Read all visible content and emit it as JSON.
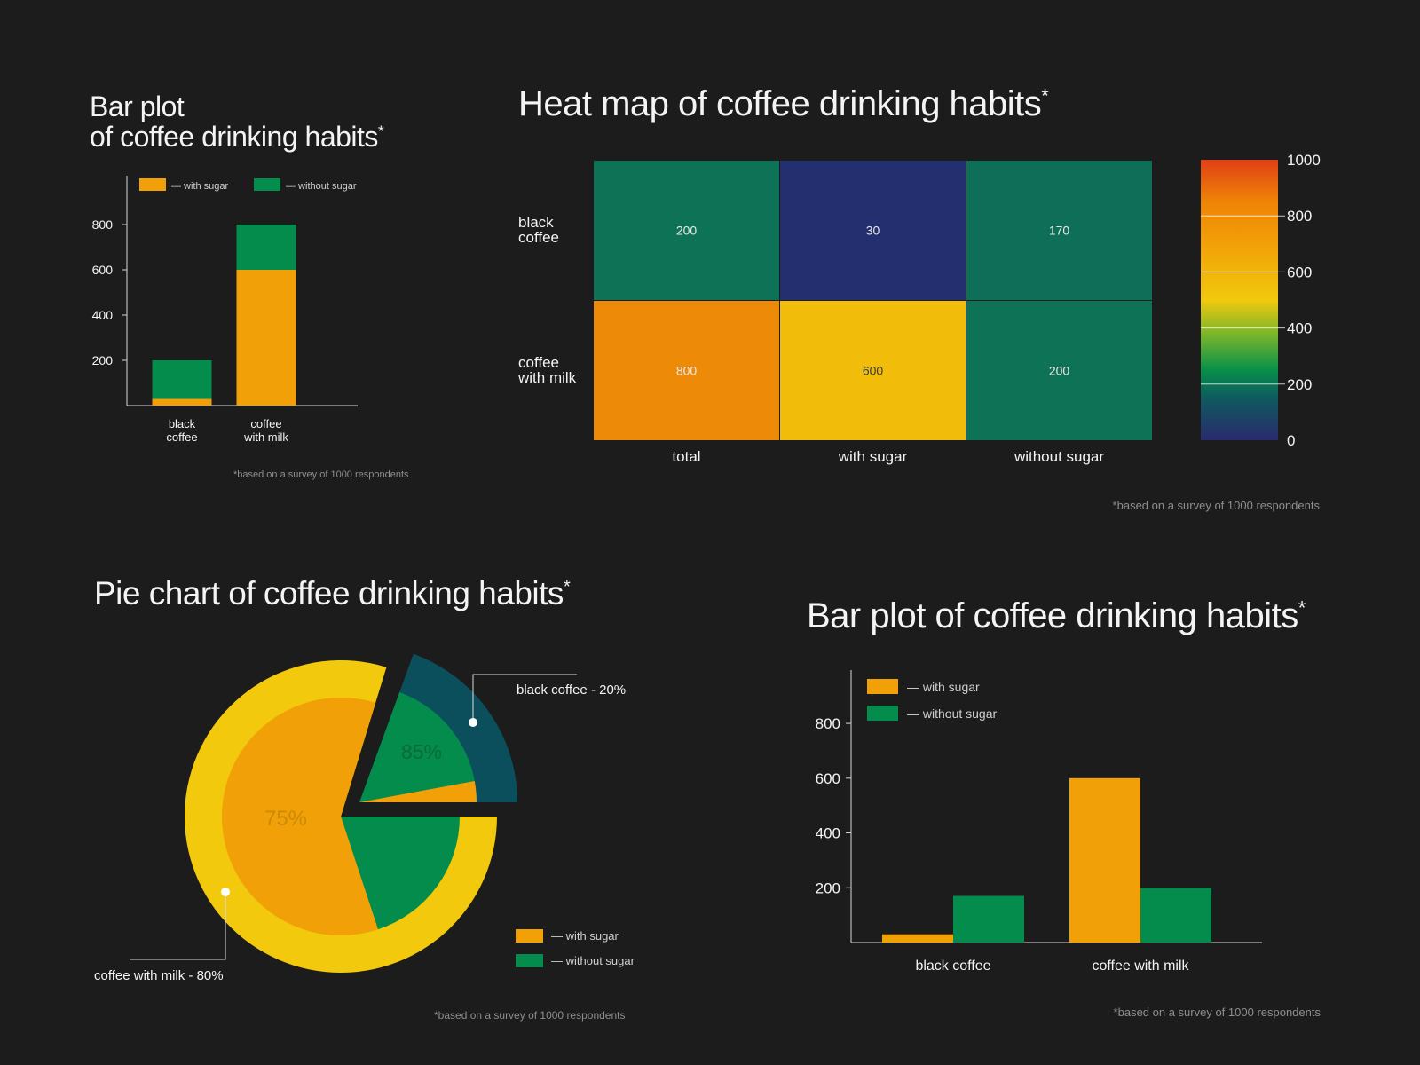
{
  "colors": {
    "background": "#1c1c1c",
    "with_sugar": "#f2a007",
    "without_sugar": "#048c4c",
    "axis": "#d8d8d8",
    "text": "#f4f4f4",
    "footnote": "#8e8e8e",
    "pie_outer_milk": "#f2c90c",
    "pie_outer_black": "#0b4f5c"
  },
  "chart_data": [
    {
      "id": "stacked_bar",
      "type": "bar",
      "stacked": true,
      "title_line1": "Bar plot",
      "title_line2": "of coffee drinking habits",
      "title_mark": "*",
      "categories": [
        [
          "black",
          "coffee"
        ],
        [
          "coffee",
          "with milk"
        ]
      ],
      "series": [
        {
          "name": "— with sugar",
          "values": [
            30,
            600
          ],
          "color": "#f2a007"
        },
        {
          "name": "— without sugar",
          "values": [
            170,
            200
          ],
          "color": "#048c4c"
        }
      ],
      "yticks": [
        200,
        400,
        600,
        800
      ],
      "ylim": [
        0,
        1000
      ],
      "legend": "top",
      "footnote": "*based on a survey of 1000 respondents"
    },
    {
      "id": "heatmap",
      "type": "heatmap",
      "title": "Heat map of coffee drinking habits",
      "title_mark": "*",
      "rows": [
        [
          "black",
          "coffee"
        ],
        [
          "coffee",
          "with milk"
        ]
      ],
      "columns": [
        "total",
        "with sugar",
        "without sugar"
      ],
      "values": [
        [
          200,
          30,
          170
        ],
        [
          800,
          600,
          200
        ]
      ],
      "cell_colors": [
        [
          "#0e7356",
          "#242f70",
          "#0e6e58"
        ],
        [
          "#ed8a07",
          "#f1bd0a",
          "#0e7356"
        ]
      ],
      "colorbar": {
        "ticks": [
          0,
          200,
          400,
          600,
          800,
          1000
        ],
        "range": [
          0,
          1000
        ],
        "stops": [
          {
            "value": 0,
            "color": "#2a2a6e"
          },
          {
            "value": 150,
            "color": "#0e5a5e"
          },
          {
            "value": 250,
            "color": "#079049"
          },
          {
            "value": 380,
            "color": "#7cb62a"
          },
          {
            "value": 500,
            "color": "#f1c90d"
          },
          {
            "value": 700,
            "color": "#f2a007"
          },
          {
            "value": 850,
            "color": "#ef8406"
          },
          {
            "value": 1000,
            "color": "#e03f16"
          }
        ]
      },
      "footnote": "*based on a survey of 1000 respondents"
    },
    {
      "id": "pie",
      "type": "pie",
      "title": "Pie chart of coffee drinking habits",
      "title_mark": "*",
      "slices": [
        {
          "label": "coffee with milk - 80%",
          "value": 80,
          "inner_label": "75%",
          "with_sugar_share": 75
        },
        {
          "label": "black coffee - 20%",
          "value": 20,
          "inner_label": "85%",
          "with_sugar_share": 15
        }
      ],
      "legend": [
        {
          "name": "— with sugar",
          "color": "#f2a007"
        },
        {
          "name": "— without sugar",
          "color": "#048c4c"
        }
      ],
      "legend_position": "bottom-right",
      "footnote": "*based on a survey of 1000 respondents"
    },
    {
      "id": "grouped_bar",
      "type": "bar",
      "stacked": false,
      "title": "Bar plot of coffee drinking habits",
      "title_mark": "*",
      "categories": [
        "black coffee",
        "coffee with milk"
      ],
      "series": [
        {
          "name": "— with sugar",
          "values": [
            30,
            600
          ],
          "color": "#f2a007"
        },
        {
          "name": "— without sugar",
          "values": [
            170,
            200
          ],
          "color": "#048c4c"
        }
      ],
      "yticks": [
        200,
        400,
        600,
        800
      ],
      "ylim": [
        0,
        1000
      ],
      "legend": "top-left",
      "footnote": "*based on a survey of 1000 respondents"
    }
  ]
}
